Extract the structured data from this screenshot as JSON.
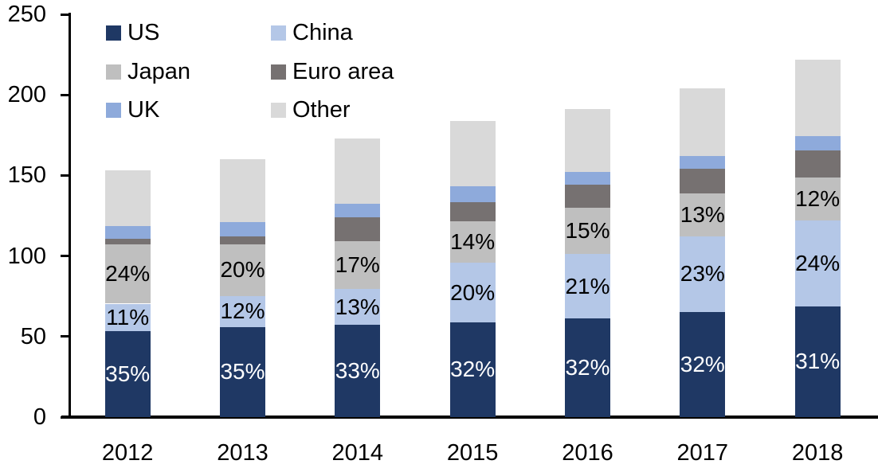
{
  "chart_data": {
    "type": "bar",
    "stacked": true,
    "title": "",
    "categories": [
      "2012",
      "2013",
      "2014",
      "2015",
      "2016",
      "2017",
      "2018"
    ],
    "totals": [
      153,
      160,
      173,
      184,
      191,
      204,
      222
    ],
    "series": [
      {
        "name": "US",
        "color": "#1F3864",
        "values": [
          53.6,
          56.0,
          57.1,
          58.9,
          61.1,
          65.3,
          68.8
        ],
        "labels": [
          "35%",
          "35%",
          "33%",
          "32%",
          "32%",
          "32%",
          "31%"
        ],
        "label_color": "#FFFFFF"
      },
      {
        "name": "China",
        "color": "#B4C7E7",
        "values": [
          16.8,
          19.2,
          22.5,
          36.8,
          40.1,
          46.9,
          53.3
        ],
        "labels": [
          "11%",
          "12%",
          "13%",
          "20%",
          "21%",
          "23%",
          "24%"
        ],
        "label_color": "#000000"
      },
      {
        "name": "Japan",
        "color": "#BFBFBF",
        "values": [
          36.7,
          32.0,
          29.4,
          25.8,
          28.7,
          26.5,
          26.6
        ],
        "labels": [
          "24%",
          "20%",
          "17%",
          "14%",
          "15%",
          "13%",
          "12%"
        ],
        "label_color": "#000000"
      },
      {
        "name": "Euro area",
        "color": "#767171",
        "values": [
          3.5,
          5.0,
          14.9,
          11.9,
          14.4,
          15.4,
          16.9
        ],
        "labels": null
      },
      {
        "name": "UK",
        "color": "#8EAADB",
        "values": [
          8.0,
          8.9,
          8.4,
          9.9,
          7.9,
          7.9,
          8.9
        ],
        "labels": null
      },
      {
        "name": "Other",
        "color": "#D9D9D9",
        "values": [
          34.4,
          38.9,
          40.7,
          40.7,
          38.8,
          42.0,
          47.5
        ],
        "labels": null
      }
    ],
    "y_axis": {
      "min": 0,
      "max": 250,
      "tick_step": 50,
      "tick_labels": [
        "0",
        "50",
        "100",
        "150",
        "200",
        "250"
      ]
    },
    "x_axis": {
      "tick_labels": [
        "2012",
        "2013",
        "2014",
        "2015",
        "2016",
        "2017",
        "2018"
      ]
    },
    "legend": {
      "position": "top-left",
      "columns": [
        [
          0,
          2,
          4
        ],
        [
          1,
          3,
          5
        ]
      ]
    },
    "axis_color": "#000000",
    "background_color": "#FFFFFF"
  }
}
